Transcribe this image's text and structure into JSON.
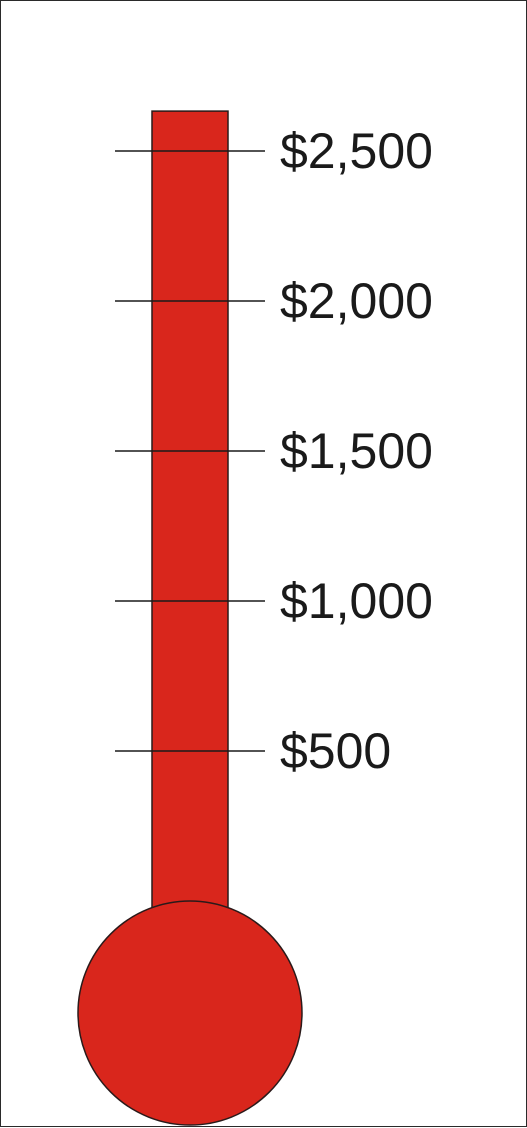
{
  "chart_data": {
    "type": "thermometer",
    "title": "",
    "ylabel": "",
    "ylim": [
      0,
      2633
    ],
    "ticks": [
      {
        "value": 2500,
        "label": "$2,500"
      },
      {
        "value": 2000,
        "label": "$2,000"
      },
      {
        "value": 1500,
        "label": "$1,500"
      },
      {
        "value": 1000,
        "label": "$1,000"
      },
      {
        "value": 500,
        "label": "$500"
      }
    ],
    "fill_value": 2633,
    "fill_color": "#d9261c",
    "outline_color": "#2a1a1a",
    "grid": false
  }
}
